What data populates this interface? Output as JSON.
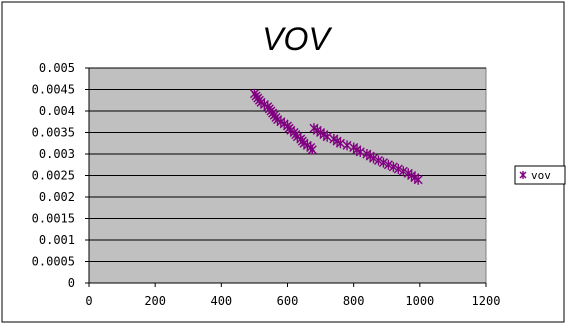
{
  "chart_data": {
    "type": "scatter",
    "title": "VOV",
    "xlabel": "",
    "ylabel": "",
    "xlim": [
      0,
      1200
    ],
    "ylim": [
      0,
      0.005
    ],
    "x_ticks": [
      "0",
      "200",
      "400",
      "600",
      "800",
      "1000",
      "1200"
    ],
    "y_ticks": [
      "0",
      "0.0005",
      "0.001",
      "0.0015",
      "0.002",
      "0.0025",
      "0.003",
      "0.0035",
      "0.004",
      "0.0045",
      "0.005"
    ],
    "grid": true,
    "legend_position": "right",
    "plot_background": "#c0c0c0",
    "series": [
      {
        "name": "vov",
        "color": "#800080",
        "marker": "asterisk",
        "points": [
          [
            500,
            0.0044
          ],
          [
            505,
            0.00435
          ],
          [
            510,
            0.0043
          ],
          [
            515,
            0.00425
          ],
          [
            520,
            0.0042
          ],
          [
            530,
            0.00415
          ],
          [
            540,
            0.0041
          ],
          [
            545,
            0.00405
          ],
          [
            550,
            0.004
          ],
          [
            555,
            0.00395
          ],
          [
            560,
            0.0039
          ],
          [
            565,
            0.00385
          ],
          [
            570,
            0.0038
          ],
          [
            580,
            0.00375
          ],
          [
            590,
            0.0037
          ],
          [
            600,
            0.00365
          ],
          [
            605,
            0.0036
          ],
          [
            610,
            0.00355
          ],
          [
            620,
            0.0035
          ],
          [
            625,
            0.00345
          ],
          [
            630,
            0.0034
          ],
          [
            640,
            0.00335
          ],
          [
            645,
            0.0033
          ],
          [
            650,
            0.00325
          ],
          [
            660,
            0.0032
          ],
          [
            670,
            0.00315
          ],
          [
            675,
            0.0031
          ],
          [
            680,
            0.0036
          ],
          [
            690,
            0.00355
          ],
          [
            700,
            0.0035
          ],
          [
            710,
            0.00345
          ],
          [
            720,
            0.0034
          ],
          [
            740,
            0.00335
          ],
          [
            750,
            0.0033
          ],
          [
            760,
            0.00325
          ],
          [
            780,
            0.0032
          ],
          [
            800,
            0.00315
          ],
          [
            810,
            0.0031
          ],
          [
            820,
            0.00305
          ],
          [
            840,
            0.003
          ],
          [
            850,
            0.00295
          ],
          [
            860,
            0.0029
          ],
          [
            875,
            0.00285
          ],
          [
            890,
            0.0028
          ],
          [
            905,
            0.00275
          ],
          [
            920,
            0.0027
          ],
          [
            935,
            0.00265
          ],
          [
            950,
            0.0026
          ],
          [
            965,
            0.00255
          ],
          [
            975,
            0.0025
          ],
          [
            985,
            0.00245
          ],
          [
            995,
            0.0024
          ]
        ]
      }
    ]
  }
}
